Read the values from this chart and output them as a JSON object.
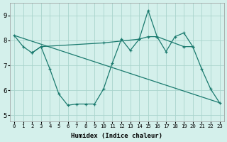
{
  "xlabel": "Humidex (Indice chaleur)",
  "background_color": "#d4f0eb",
  "grid_color": "#aad4cc",
  "line_color": "#1a7a6e",
  "xlim_min": -0.5,
  "xlim_max": 23.5,
  "ylim_min": 4.75,
  "ylim_max": 9.5,
  "yticks": [
    5,
    6,
    7,
    8,
    9
  ],
  "xticks": [
    0,
    1,
    2,
    3,
    4,
    5,
    6,
    7,
    8,
    9,
    10,
    11,
    12,
    13,
    14,
    15,
    16,
    17,
    18,
    19,
    20,
    21,
    22,
    23
  ],
  "line1_x": [
    0,
    1,
    2,
    3,
    4,
    5,
    6,
    7,
    8,
    9,
    10,
    11,
    12,
    13,
    14,
    15,
    16,
    17,
    18,
    19,
    20,
    21,
    22,
    23
  ],
  "line1_y": [
    8.2,
    7.75,
    7.5,
    7.75,
    6.85,
    5.85,
    5.4,
    5.45,
    5.45,
    5.45,
    6.05,
    7.1,
    8.05,
    7.6,
    8.05,
    9.2,
    8.15,
    7.55,
    8.15,
    8.3,
    7.75,
    6.85,
    6.05,
    5.5
  ],
  "line2_x": [
    0,
    23
  ],
  "line2_y": [
    8.2,
    5.5
  ],
  "line3_x": [
    2,
    3,
    10,
    14,
    15,
    16,
    19,
    20
  ],
  "line3_y": [
    7.5,
    7.75,
    7.9,
    8.05,
    8.15,
    8.15,
    7.75,
    7.75
  ]
}
